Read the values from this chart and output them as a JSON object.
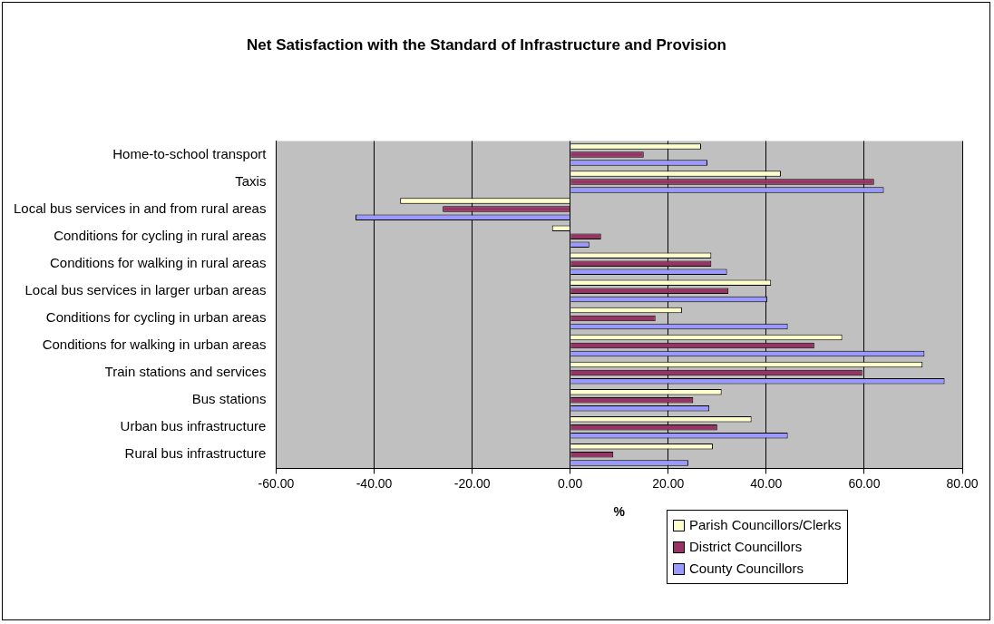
{
  "chart_data": {
    "type": "bar",
    "orientation": "horizontal",
    "title": "Net Satisfaction with the Standard of Infrastructure and Provision",
    "xlabel": "%",
    "categories": [
      "Home-to-school transport",
      "Taxis",
      "Local bus services in and from rural areas",
      "Conditions for cycling in rural areas",
      "Conditions for walking in rural areas",
      "Local bus services in larger urban areas",
      "Conditions for cycling in urban areas",
      "Conditions for walking in urban areas",
      "Train stations and services",
      "Bus stations",
      "Urban bus infrastructure",
      "Rural bus infrastructure"
    ],
    "series": [
      {
        "name": "Parish Councillors/Clerks",
        "color": "#ffffcc",
        "values": [
          26.7,
          43,
          -34.7,
          -3.7,
          28.8,
          41,
          22.8,
          55.5,
          71.9,
          30.9,
          37,
          29.1
        ]
      },
      {
        "name": "District Councillors",
        "color": "#993366",
        "values": [
          15,
          62,
          -26,
          6.3,
          28.8,
          32.3,
          17.4,
          49.8,
          59.6,
          25.1,
          30,
          8.8
        ]
      },
      {
        "name": "County Councillors",
        "color": "#9999ff",
        "values": [
          28,
          64,
          -43.8,
          3.9,
          32,
          40.2,
          44.4,
          72.3,
          76.4,
          28.4,
          44.4,
          24.1
        ]
      }
    ],
    "xlim": [
      -60,
      80
    ],
    "xticks": [
      {
        "value": -60,
        "label": "-60.00"
      },
      {
        "value": -40,
        "label": "-40.00"
      },
      {
        "value": -20,
        "label": "-20.00"
      },
      {
        "value": 0,
        "label": "0.00"
      },
      {
        "value": 20,
        "label": "20.00"
      },
      {
        "value": 40,
        "label": "40.00"
      },
      {
        "value": 60,
        "label": "60.00"
      },
      {
        "value": 80,
        "label": "80.00"
      }
    ],
    "grid": "x",
    "legend": "bottom right"
  }
}
